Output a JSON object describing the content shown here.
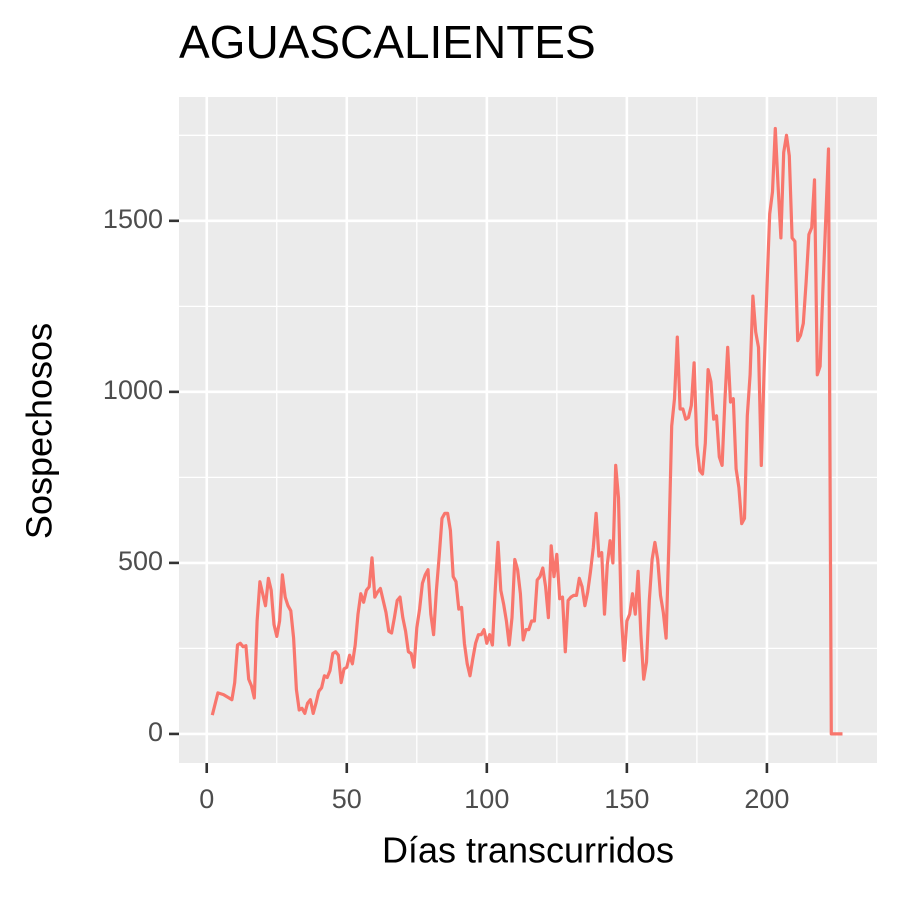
{
  "chart_data": {
    "type": "line",
    "title": "AGUASCALIENTES",
    "x_label": "Días transcurridos",
    "y_label": "Sospechosos",
    "color": "#f8766d",
    "grid": true,
    "xlim": [
      -9.9,
      239.3
    ],
    "ylim": [
      -85,
      1862
    ],
    "xticks": [
      0,
      50,
      100,
      150,
      200
    ],
    "yticks": [
      0,
      500,
      1000,
      1500
    ],
    "x": [
      2,
      4,
      6,
      8,
      9,
      10,
      11,
      12,
      13,
      14,
      15,
      16,
      17,
      18,
      19,
      20,
      21,
      22,
      23,
      24,
      25,
      26,
      27,
      28,
      29,
      30,
      31,
      32,
      33,
      34,
      35,
      36,
      37,
      38,
      39,
      40,
      41,
      42,
      43,
      44,
      45,
      46,
      47,
      48,
      49,
      50,
      51,
      52,
      53,
      54,
      55,
      56,
      57,
      58,
      59,
      60,
      61,
      62,
      63,
      64,
      65,
      66,
      67,
      68,
      69,
      70,
      71,
      72,
      73,
      74,
      75,
      76,
      77,
      78,
      79,
      80,
      81,
      82,
      83,
      84,
      85,
      86,
      87,
      88,
      89,
      90,
      91,
      92,
      93,
      94,
      95,
      96,
      97,
      98,
      99,
      100,
      101,
      102,
      103,
      104,
      105,
      106,
      107,
      108,
      109,
      110,
      111,
      112,
      113,
      114,
      115,
      116,
      117,
      118,
      119,
      120,
      121,
      122,
      123,
      124,
      125,
      126,
      127,
      128,
      129,
      130,
      131,
      132,
      133,
      134,
      135,
      136,
      137,
      138,
      139,
      140,
      141,
      142,
      143,
      144,
      145,
      146,
      147,
      148,
      149,
      150,
      151,
      152,
      153,
      154,
      155,
      156,
      157,
      158,
      159,
      160,
      161,
      162,
      163,
      164,
      165,
      166,
      167,
      168,
      169,
      170,
      171,
      172,
      173,
      174,
      175,
      176,
      177,
      178,
      179,
      180,
      181,
      182,
      183,
      184,
      185,
      186,
      187,
      188,
      189,
      190,
      191,
      192,
      193,
      194,
      195,
      196,
      197,
      198,
      199,
      200,
      201,
      202,
      203,
      204,
      205,
      206,
      207,
      208,
      209,
      210,
      211,
      212,
      213,
      214,
      215,
      216,
      217,
      218,
      219,
      220,
      221,
      222,
      223,
      224,
      225,
      226,
      227
    ],
    "values": [
      55,
      120,
      115,
      105,
      100,
      150,
      260,
      265,
      255,
      258,
      160,
      140,
      105,
      330,
      445,
      410,
      375,
      455,
      420,
      320,
      285,
      330,
      465,
      400,
      375,
      360,
      280,
      130,
      70,
      75,
      60,
      90,
      100,
      60,
      90,
      125,
      135,
      170,
      165,
      185,
      235,
      240,
      230,
      150,
      190,
      195,
      230,
      205,
      260,
      350,
      410,
      385,
      420,
      430,
      515,
      400,
      415,
      425,
      390,
      355,
      300,
      295,
      340,
      390,
      400,
      340,
      300,
      240,
      235,
      195,
      310,
      365,
      440,
      465,
      480,
      350,
      290,
      420,
      520,
      630,
      645,
      645,
      595,
      460,
      445,
      365,
      370,
      265,
      205,
      170,
      220,
      265,
      290,
      290,
      305,
      265,
      290,
      260,
      420,
      560,
      420,
      380,
      330,
      260,
      340,
      510,
      480,
      410,
      275,
      305,
      305,
      330,
      330,
      450,
      460,
      485,
      430,
      340,
      550,
      460,
      525,
      395,
      400,
      240,
      390,
      400,
      405,
      405,
      455,
      430,
      375,
      415,
      475,
      545,
      645,
      520,
      530,
      350,
      495,
      565,
      500,
      785,
      690,
      345,
      215,
      330,
      350,
      410,
      350,
      475,
      290,
      160,
      210,
      390,
      510,
      560,
      510,
      405,
      355,
      280,
      560,
      900,
      980,
      1160,
      950,
      950,
      920,
      925,
      960,
      1085,
      845,
      770,
      760,
      850,
      1065,
      1030,
      920,
      930,
      810,
      785,
      975,
      1130,
      970,
      980,
      775,
      720,
      615,
      630,
      930,
      1050,
      1280,
      1175,
      1130,
      785,
      1060,
      1300,
      1520,
      1585,
      1770,
      1600,
      1450,
      1700,
      1750,
      1690,
      1450,
      1440,
      1150,
      1165,
      1200,
      1320,
      1460,
      1480,
      1620,
      1050,
      1075,
      1300,
      1500,
      1710,
      0,
      0,
      0,
      0,
      0
    ]
  }
}
